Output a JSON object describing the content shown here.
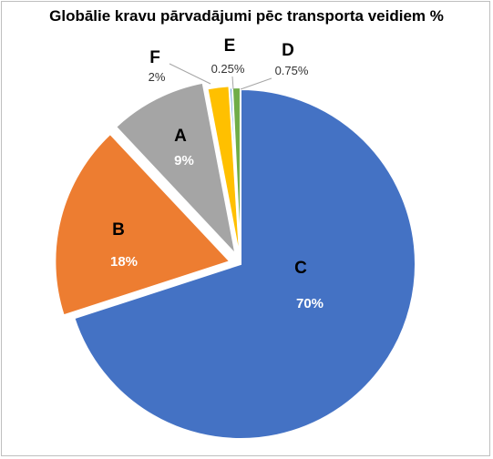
{
  "chart_data": {
    "type": "pie",
    "title": "Globālie kravu pārvadājumi pēc transporta veidiem %",
    "slices": [
      {
        "category": "C",
        "value": 70,
        "label": "70%",
        "color": "#4472c4",
        "label_position": "inside"
      },
      {
        "category": "B",
        "value": 18,
        "label": "18%",
        "color": "#ed7d31",
        "label_position": "inside"
      },
      {
        "category": "A",
        "value": 9,
        "label": "9%",
        "color": "#a5a5a5",
        "label_position": "inside"
      },
      {
        "category": "F",
        "value": 2,
        "label": "2%",
        "color": "#ffc000",
        "label_position": "outside"
      },
      {
        "category": "E",
        "value": 0.25,
        "label": "0.25%",
        "color": "#5b9bd5",
        "label_position": "outside"
      },
      {
        "category": "D",
        "value": 0.75,
        "label": "0.75%",
        "color": "#70ad47",
        "label_position": "outside"
      }
    ],
    "start_angle_deg": 0,
    "direction": "clockwise",
    "legend": "none"
  }
}
